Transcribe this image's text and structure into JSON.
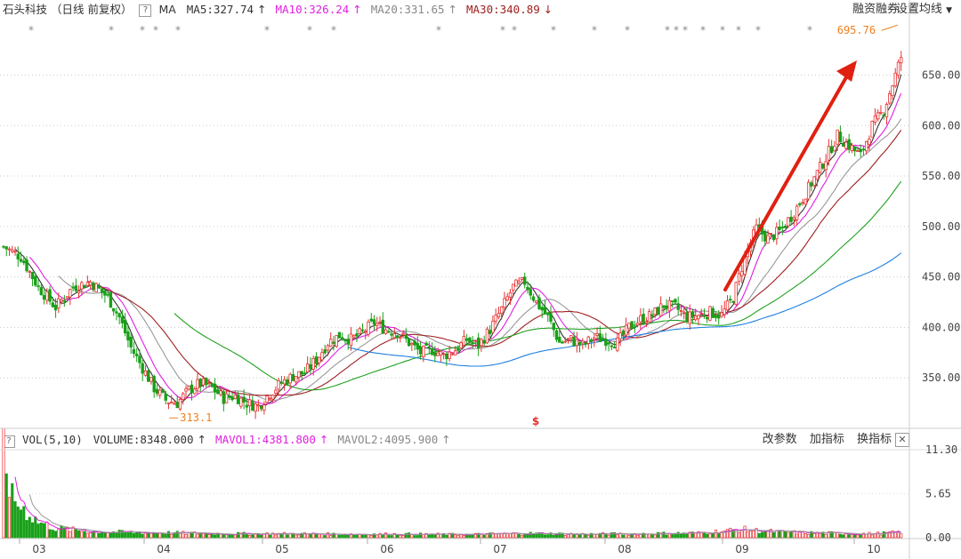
{
  "header": {
    "stock_name": "石头科技",
    "period_label": "（日线 前复权）",
    "help_glyph": "?",
    "ma_label": "MA",
    "ma5": {
      "label": "MA5:327.74",
      "arrow": "↑",
      "color": "#333333"
    },
    "ma10": {
      "label": "MA10:326.24",
      "arrow": "↑",
      "color": "#e020e0"
    },
    "ma20": {
      "label": "MA20:331.65",
      "arrow": "↑",
      "color": "#999999"
    },
    "ma30": {
      "label": "MA30:340.89",
      "arrow": "↓",
      "color": "#a02020"
    },
    "margin_link": "融资融券",
    "settings_link": "设置均线"
  },
  "volume_header": {
    "help_glyph": "?",
    "indicator": "VOL(5,10)",
    "volume": "VOLUME:8348.000",
    "volume_arrow": "↑",
    "mavol1": "MAVOL1:4381.800",
    "mavol1_arrow": "↑",
    "mavol2": "MAVOL2:4095.900",
    "mavol2_arrow": "↑",
    "btn_params": "改参数",
    "btn_add": "加指标",
    "btn_switch": "换指标",
    "close_glyph": "✕"
  },
  "colors": {
    "up": "#e83030",
    "down": "#18a018",
    "ma5": "#333333",
    "ma10": "#e020e0",
    "ma20": "#999999",
    "ma30": "#a02020",
    "ma60": "#20a020",
    "ma120": "#2080e0",
    "arrow": "#e02010",
    "annotation": "#f08020"
  },
  "chart_data": {
    "type": "candlestick",
    "price_axis": {
      "ticks": [
        "350.00",
        "400.00",
        "450.00",
        "500.00",
        "550.00",
        "600.00",
        "650.00"
      ],
      "range": [
        300,
        705
      ]
    },
    "volume_axis": {
      "ticks": [
        "0.00",
        "5.65",
        "11.30"
      ],
      "range": [
        0,
        11.3
      ]
    },
    "x_axis": {
      "ticks": [
        "03",
        "04",
        "05",
        "06",
        "07",
        "08",
        "09",
        "10"
      ]
    },
    "annotations": {
      "high_label": "695.76",
      "low_label": "313.1",
      "marker_label": "$"
    },
    "price_path": [
      [
        0,
        480
      ],
      [
        6,
        470
      ],
      [
        12,
        440
      ],
      [
        18,
        420
      ],
      [
        24,
        440
      ],
      [
        30,
        445
      ],
      [
        36,
        430
      ],
      [
        40,
        410
      ],
      [
        44,
        380
      ],
      [
        48,
        360
      ],
      [
        52,
        340
      ],
      [
        56,
        328
      ],
      [
        60,
        325
      ],
      [
        64,
        338
      ],
      [
        68,
        345
      ],
      [
        72,
        340
      ],
      [
        76,
        330
      ],
      [
        80,
        332
      ],
      [
        84,
        325
      ],
      [
        88,
        322
      ],
      [
        92,
        335
      ],
      [
        96,
        345
      ],
      [
        100,
        352
      ],
      [
        104,
        355
      ],
      [
        108,
        368
      ],
      [
        112,
        385
      ],
      [
        116,
        392
      ],
      [
        120,
        388
      ],
      [
        124,
        395
      ],
      [
        128,
        405
      ],
      [
        132,
        398
      ],
      [
        136,
        395
      ],
      [
        140,
        385
      ],
      [
        144,
        375
      ],
      [
        148,
        378
      ],
      [
        152,
        372
      ],
      [
        156,
        378
      ],
      [
        160,
        388
      ],
      [
        164,
        382
      ],
      [
        168,
        398
      ],
      [
        172,
        418
      ],
      [
        176,
        440
      ],
      [
        180,
        445
      ],
      [
        184,
        425
      ],
      [
        188,
        410
      ],
      [
        192,
        385
      ],
      [
        196,
        388
      ],
      [
        200,
        382
      ],
      [
        204,
        390
      ],
      [
        208,
        388
      ],
      [
        212,
        385
      ],
      [
        216,
        400
      ],
      [
        220,
        408
      ],
      [
        224,
        412
      ],
      [
        228,
        422
      ],
      [
        232,
        420
      ],
      [
        236,
        410
      ],
      [
        240,
        412
      ],
      [
        244,
        415
      ],
      [
        248,
        412
      ],
      [
        252,
        430
      ],
      [
        256,
        470
      ],
      [
        260,
        498
      ],
      [
        264,
        488
      ],
      [
        268,
        495
      ],
      [
        272,
        510
      ],
      [
        276,
        528
      ],
      [
        280,
        548
      ],
      [
        284,
        568
      ],
      [
        288,
        590
      ],
      [
        292,
        580
      ],
      [
        296,
        570
      ],
      [
        300,
        600
      ],
      [
        304,
        615
      ],
      [
        308,
        650
      ],
      [
        310,
        668
      ]
    ],
    "volume_path": [
      [
        0,
        11.3
      ],
      [
        3,
        5
      ],
      [
        6,
        4
      ],
      [
        9,
        3
      ],
      [
        12,
        2
      ],
      [
        15,
        1.6
      ],
      [
        18,
        1.2
      ],
      [
        24,
        1.0
      ],
      [
        30,
        0.8
      ],
      [
        40,
        0.7
      ],
      [
        60,
        0.6
      ],
      [
        80,
        0.5
      ],
      [
        100,
        0.5
      ],
      [
        120,
        0.45
      ],
      [
        140,
        0.45
      ],
      [
        160,
        0.4
      ],
      [
        180,
        0.55
      ],
      [
        200,
        0.45
      ],
      [
        220,
        0.5
      ],
      [
        240,
        0.6
      ],
      [
        250,
        0.9
      ],
      [
        255,
        1.1
      ],
      [
        260,
        0.9
      ],
      [
        270,
        0.7
      ],
      [
        280,
        0.6
      ],
      [
        290,
        0.55
      ],
      [
        300,
        0.5
      ],
      [
        310,
        0.7
      ]
    ]
  }
}
